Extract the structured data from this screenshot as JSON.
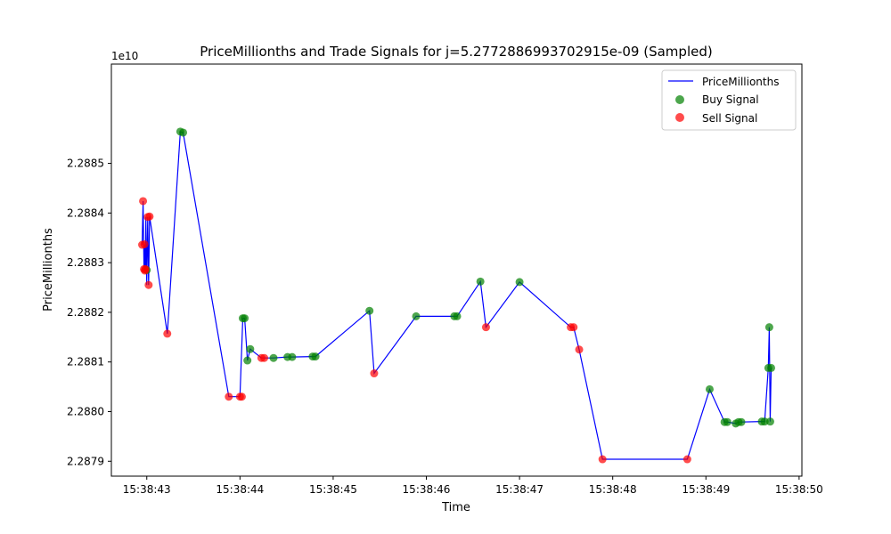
{
  "chart_data": {
    "type": "line",
    "title": "PriceMillionths and Trade Signals for j=5.2772886993702915e-09 (Sampled)",
    "xlabel": "Time",
    "ylabel": "PriceMillionths",
    "y_offset_label": "1e10",
    "x_tick_labels": [
      "15:38:43",
      "15:38:44",
      "15:38:45",
      "15:38:46",
      "15:38:47",
      "15:38:48",
      "15:38:49",
      "15:38:50"
    ],
    "x_ticks_seconds": [
      43,
      44,
      45,
      46,
      47,
      48,
      49,
      50
    ],
    "xlim_seconds": [
      42.62,
      50.03
    ],
    "y_tick_labels": [
      "2.2879",
      "2.2880",
      "2.2881",
      "2.2882",
      "2.2883",
      "2.2884",
      "2.2885"
    ],
    "y_ticks": [
      2.2879,
      2.288,
      2.2881,
      2.2882,
      2.2883,
      2.2884,
      2.2885
    ],
    "ylim": [
      2.28787,
      2.2887
    ],
    "grid": false,
    "legend": {
      "placement": "top-right",
      "entries": [
        "PriceMillionths",
        "Buy Signal",
        "Sell Signal"
      ]
    },
    "colors": {
      "line": "#0000ff",
      "buy": "#008000",
      "sell": "#ff0000"
    },
    "series": [
      {
        "name": "PriceMillionths",
        "time_seconds": [
          42.95,
          42.96,
          42.97,
          42.975,
          42.98,
          42.985,
          42.99,
          43.0,
          43.01,
          43.02,
          43.03,
          43.22,
          43.36,
          43.39,
          43.88,
          44.0,
          44.03,
          44.05,
          44.08,
          44.11,
          44.23,
          44.26,
          44.36,
          44.51,
          44.56,
          44.78,
          44.81,
          45.39,
          45.44,
          45.89,
          46.3,
          46.33,
          46.58,
          46.64,
          47.0,
          47.55,
          47.58,
          47.64,
          47.89,
          48.8,
          49.04,
          49.2,
          49.23,
          49.32,
          49.35,
          49.38,
          49.6,
          49.63,
          49.67,
          49.68,
          49.69,
          49.7
        ],
        "values": [
          2.288336,
          2.288424,
          2.288287,
          2.288337,
          2.288284,
          2.288287,
          2.288392,
          2.288255,
          2.288392,
          2.288255,
          2.288393,
          2.288157,
          2.288564,
          2.288562,
          2.28803,
          2.28803,
          2.288188,
          2.288188,
          2.288103,
          2.288126,
          2.288108,
          2.288108,
          2.288108,
          2.28811,
          2.28811,
          2.288111,
          2.288111,
          2.288203,
          2.288077,
          2.288192,
          2.288192,
          2.288192,
          2.288262,
          2.28817,
          2.288261,
          2.28817,
          2.28817,
          2.288125,
          2.287904,
          2.287904,
          2.288045,
          2.287979,
          2.287979,
          2.287976,
          2.287979,
          2.287979,
          2.28798,
          2.28798,
          2.288088,
          2.28817,
          2.28798,
          2.288088
        ]
      },
      {
        "name": "Buy Signal",
        "time_seconds": [
          43.0,
          43.36,
          43.39,
          44.03,
          44.05,
          44.08,
          44.11,
          44.36,
          44.51,
          44.56,
          44.78,
          44.81,
          45.39,
          45.89,
          46.3,
          46.33,
          46.58,
          47.0,
          49.04,
          49.2,
          49.23,
          49.32,
          49.35,
          49.38,
          49.6,
          49.63,
          49.67,
          49.68,
          49.69,
          49.7
        ],
        "values": [
          2.288285,
          2.288564,
          2.288562,
          2.288188,
          2.288188,
          2.288103,
          2.288126,
          2.288108,
          2.28811,
          2.28811,
          2.288111,
          2.288111,
          2.288203,
          2.288192,
          2.288192,
          2.288192,
          2.288262,
          2.288261,
          2.288045,
          2.287979,
          2.287979,
          2.287976,
          2.287979,
          2.287979,
          2.28798,
          2.28798,
          2.288088,
          2.28817,
          2.28798,
          2.288088
        ]
      },
      {
        "name": "Sell Signal",
        "time_seconds": [
          42.95,
          42.96,
          42.97,
          42.975,
          42.98,
          42.985,
          43.01,
          43.02,
          43.03,
          43.22,
          43.88,
          44.0,
          44.02,
          44.23,
          44.26,
          45.44,
          46.64,
          47.55,
          47.58,
          47.64,
          47.89,
          48.8
        ],
        "values": [
          2.288336,
          2.288424,
          2.288287,
          2.288337,
          2.288284,
          2.288287,
          2.288392,
          2.288255,
          2.288393,
          2.288157,
          2.28803,
          2.28803,
          2.28803,
          2.288108,
          2.288108,
          2.288077,
          2.28817,
          2.28817,
          2.28817,
          2.288125,
          2.287904,
          2.287904
        ]
      }
    ]
  }
}
